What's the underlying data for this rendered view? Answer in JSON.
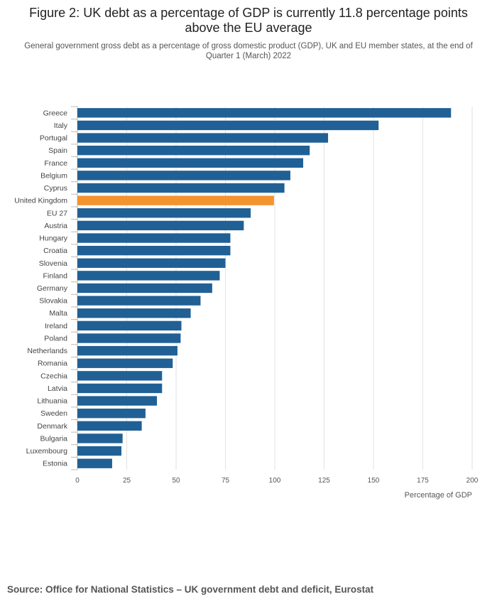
{
  "header": {
    "title": "Figure 2: UK debt as a percentage of GDP is currently 11.8 percentage points above the EU average",
    "subtitle": "General government gross debt as a percentage of gross domestic product (GDP), UK and EU member states, at the end of Quarter 1 (March) 2022"
  },
  "footer": {
    "source": "Source: Office for National Statistics – UK government debt and deficit, Eurostat"
  },
  "colors": {
    "bar": "#206095",
    "highlight": "#f39431",
    "grid": "#e2e2e2",
    "axis": "#bbbbbb"
  },
  "chart_data": {
    "type": "bar",
    "orientation": "horizontal",
    "title": "Figure 2: UK debt as a percentage of GDP is currently 11.8 percentage points above the EU average",
    "xlabel": "Percentage of GDP",
    "ylabel": "",
    "xlim": [
      0,
      200
    ],
    "xticks": [
      0,
      25,
      50,
      75,
      100,
      125,
      150,
      175,
      200
    ],
    "grid": true,
    "highlight": "United Kingdom",
    "categories": [
      "Greece",
      "Italy",
      "Portugal",
      "Spain",
      "France",
      "Belgium",
      "Cyprus",
      "United Kingdom",
      "EU 27",
      "Austria",
      "Hungary",
      "Croatia",
      "Slovenia",
      "Finland",
      "Germany",
      "Slovakia",
      "Malta",
      "Ireland",
      "Poland",
      "Netherlands",
      "Romania",
      "Czechia",
      "Latvia",
      "Lithuania",
      "Sweden",
      "Denmark",
      "Bulgaria",
      "Luxembourg",
      "Estonia"
    ],
    "values": [
      189.3,
      152.6,
      127.0,
      117.7,
      114.4,
      107.9,
      104.9,
      99.6,
      87.8,
      84.3,
      77.5,
      77.5,
      75.0,
      72.1,
      68.3,
      62.4,
      57.4,
      52.7,
      52.3,
      50.7,
      48.3,
      42.9,
      42.9,
      40.3,
      34.5,
      32.6,
      22.9,
      22.3,
      17.6
    ]
  }
}
